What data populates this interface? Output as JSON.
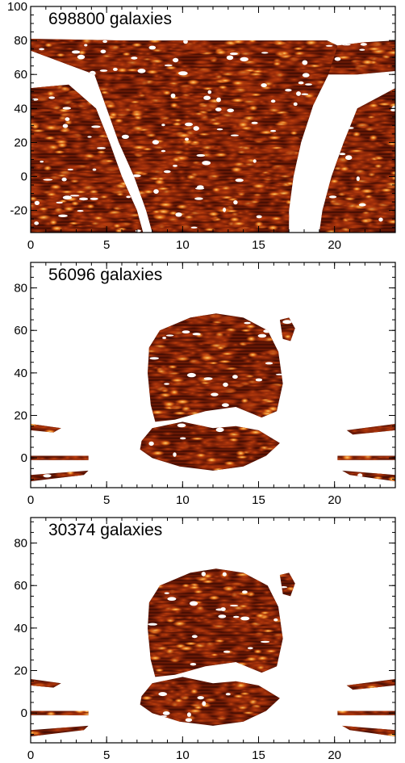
{
  "colors": {
    "frame": "#000000",
    "background": "#ffffff",
    "map_dark": "#3a0a02",
    "map_mid": "#7a1c06",
    "map_hot": "#c2410e"
  },
  "chart_data": [
    {
      "type": "heatmap",
      "title": "698800 galaxies",
      "xlim": [
        0,
        24
      ],
      "ylim": [
        -33,
        100
      ],
      "xticks": [
        "0",
        "5",
        "10",
        "15",
        "20"
      ],
      "yticks": [
        "-20",
        "0",
        "20",
        "40",
        "60",
        "80",
        "100"
      ],
      "regions": [
        {
          "name": "main",
          "polygon": [
            [
              6.0,
              80
            ],
            [
              19.5,
              80
            ],
            [
              20.2,
              77
            ],
            [
              20.5,
              72
            ],
            [
              19.6,
              60
            ],
            [
              18.6,
              42
            ],
            [
              17.8,
              20
            ],
            [
              17.3,
              0
            ],
            [
              17.0,
              -20
            ],
            [
              17.0,
              -33
            ],
            [
              8.0,
              -33
            ],
            [
              7.6,
              -20
            ],
            [
              6.8,
              0
            ],
            [
              5.8,
              20
            ],
            [
              5.0,
              40
            ],
            [
              4.2,
              60
            ],
            [
              0,
              74
            ],
            [
              0,
              81
            ]
          ],
          "extend_x_from": 0,
          "extend_y_top": 84
        },
        {
          "name": "left",
          "polygon": [
            [
              0,
              52
            ],
            [
              2.5,
              54
            ],
            [
              4.3,
              40
            ],
            [
              5.2,
              20
            ],
            [
              6.0,
              0
            ],
            [
              7.0,
              -20
            ],
            [
              7.4,
              -33
            ],
            [
              0,
              -33
            ]
          ]
        },
        {
          "name": "right-strip",
          "polygon": [
            [
              20.2,
              77
            ],
            [
              22.0,
              79
            ],
            [
              24,
              80
            ],
            [
              24,
              62
            ],
            [
              21.5,
              60
            ],
            [
              19.6,
              60
            ]
          ]
        },
        {
          "name": "right",
          "polygon": [
            [
              21.5,
              40
            ],
            [
              24,
              52
            ],
            [
              24,
              -33
            ],
            [
              19.0,
              -33
            ],
            [
              19.2,
              -20
            ],
            [
              19.8,
              0
            ],
            [
              20.6,
              20
            ]
          ]
        }
      ]
    },
    {
      "type": "heatmap",
      "title": "56096 galaxies",
      "xlim": [
        0,
        24
      ],
      "ylim": [
        -14,
        92
      ],
      "xticks": [
        "0",
        "5",
        "10",
        "15",
        "20"
      ],
      "yticks": [
        "0",
        "20",
        "40",
        "60",
        "80"
      ],
      "regions": [
        {
          "name": "upper-cap",
          "polygon": [
            [
              7.8,
              52
            ],
            [
              8.5,
              60
            ],
            [
              10.5,
              66
            ],
            [
              12.2,
              68
            ],
            [
              14.0,
              66
            ],
            [
              15.6,
              60
            ],
            [
              16.3,
              50
            ],
            [
              16.6,
              35
            ],
            [
              16.2,
              22
            ],
            [
              15.2,
              19
            ],
            [
              13.5,
              24
            ],
            [
              11.5,
              22
            ],
            [
              9.5,
              18
            ],
            [
              8.2,
              17
            ],
            [
              7.9,
              25
            ],
            [
              7.7,
              40
            ]
          ]
        },
        {
          "name": "lower-band",
          "polygon": [
            [
              7.3,
              8
            ],
            [
              8.0,
              14
            ],
            [
              10.0,
              17
            ],
            [
              12.0,
              14
            ],
            [
              13.5,
              15
            ],
            [
              15.0,
              13
            ],
            [
              16.4,
              7
            ],
            [
              15.5,
              1
            ],
            [
              14.0,
              -4
            ],
            [
              12.0,
              -6
            ],
            [
              9.8,
              -4
            ],
            [
              8.0,
              0
            ],
            [
              7.2,
              4
            ]
          ]
        },
        {
          "name": "right-blob",
          "polygon": [
            [
              16.4,
              65
            ],
            [
              17.0,
              66
            ],
            [
              17.4,
              61
            ],
            [
              17.1,
              55
            ],
            [
              16.6,
              56
            ]
          ]
        },
        {
          "name": "stripe-left-1",
          "polygon": [
            [
              0,
              16
            ],
            [
              2.0,
              14
            ],
            [
              1.5,
              12
            ],
            [
              0,
              13
            ]
          ]
        },
        {
          "name": "stripe-left-2",
          "polygon": [
            [
              0,
              1
            ],
            [
              3.8,
              1
            ],
            [
              3.8,
              -1
            ],
            [
              0,
              -1
            ]
          ]
        },
        {
          "name": "stripe-left-3",
          "polygon": [
            [
              0,
              -8
            ],
            [
              3.8,
              -6
            ],
            [
              3.5,
              -8
            ],
            [
              0,
              -11
            ]
          ]
        },
        {
          "name": "stripe-right-1",
          "polygon": [
            [
              20.8,
              13
            ],
            [
              24,
              16
            ],
            [
              24,
              13
            ],
            [
              21.2,
              11
            ]
          ]
        },
        {
          "name": "stripe-right-2",
          "polygon": [
            [
              20.2,
              1
            ],
            [
              24,
              1
            ],
            [
              24,
              -1
            ],
            [
              20.2,
              -1
            ]
          ]
        },
        {
          "name": "stripe-right-3",
          "polygon": [
            [
              20.5,
              -6
            ],
            [
              24,
              -8
            ],
            [
              24,
              -11
            ],
            [
              21.0,
              -8
            ]
          ]
        }
      ]
    },
    {
      "type": "heatmap",
      "title": "30374 galaxies",
      "xlim": [
        0,
        24
      ],
      "ylim": [
        -14,
        92
      ],
      "xticks": [
        "0",
        "5",
        "10",
        "15",
        "20"
      ],
      "yticks": [
        "0",
        "20",
        "40",
        "60",
        "80"
      ],
      "regions": [
        {
          "name": "upper-cap",
          "polygon": [
            [
              7.8,
              52
            ],
            [
              8.5,
              60
            ],
            [
              10.5,
              66
            ],
            [
              12.2,
              68
            ],
            [
              14.0,
              66
            ],
            [
              15.6,
              60
            ],
            [
              16.3,
              50
            ],
            [
              16.6,
              35
            ],
            [
              16.2,
              22
            ],
            [
              15.2,
              19
            ],
            [
              13.5,
              24
            ],
            [
              11.5,
              22
            ],
            [
              9.5,
              18
            ],
            [
              8.2,
              17
            ],
            [
              7.9,
              25
            ],
            [
              7.7,
              40
            ]
          ]
        },
        {
          "name": "lower-band",
          "polygon": [
            [
              7.3,
              8
            ],
            [
              8.0,
              14
            ],
            [
              10.0,
              17
            ],
            [
              12.0,
              14
            ],
            [
              13.5,
              15
            ],
            [
              15.0,
              13
            ],
            [
              16.4,
              7
            ],
            [
              15.5,
              1
            ],
            [
              14.0,
              -4
            ],
            [
              12.0,
              -6
            ],
            [
              9.8,
              -4
            ],
            [
              8.0,
              0
            ],
            [
              7.2,
              4
            ]
          ]
        },
        {
          "name": "right-blob",
          "polygon": [
            [
              16.4,
              65
            ],
            [
              17.0,
              66
            ],
            [
              17.4,
              61
            ],
            [
              17.1,
              55
            ],
            [
              16.6,
              56
            ]
          ]
        },
        {
          "name": "stripe-left-1",
          "polygon": [
            [
              0,
              16
            ],
            [
              2.0,
              14
            ],
            [
              1.5,
              12
            ],
            [
              0,
              13
            ]
          ]
        },
        {
          "name": "stripe-left-2",
          "polygon": [
            [
              0,
              1
            ],
            [
              3.8,
              1
            ],
            [
              3.8,
              -1
            ],
            [
              0,
              -1
            ]
          ]
        },
        {
          "name": "stripe-left-3",
          "polygon": [
            [
              0,
              -8
            ],
            [
              3.8,
              -6
            ],
            [
              3.5,
              -8
            ],
            [
              0,
              -11
            ]
          ]
        },
        {
          "name": "stripe-right-1",
          "polygon": [
            [
              20.8,
              13
            ],
            [
              24,
              16
            ],
            [
              24,
              13
            ],
            [
              21.2,
              11
            ]
          ]
        },
        {
          "name": "stripe-right-2",
          "polygon": [
            [
              20.2,
              1
            ],
            [
              24,
              1
            ],
            [
              24,
              -1
            ],
            [
              20.2,
              -1
            ]
          ]
        },
        {
          "name": "stripe-right-3",
          "polygon": [
            [
              20.5,
              -6
            ],
            [
              24,
              -8
            ],
            [
              24,
              -11
            ],
            [
              21.0,
              -8
            ]
          ]
        }
      ]
    }
  ]
}
